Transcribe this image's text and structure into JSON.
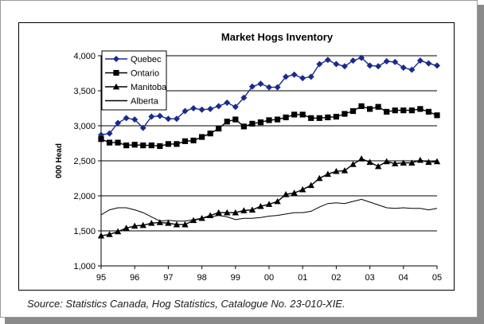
{
  "source_note": "Source: Statistics Canada, Hog Statistics, Catalogue No. 23-010-XIE.",
  "chart_data": {
    "type": "line",
    "title": "Market Hogs Inventory",
    "xlabel": "",
    "ylabel": "000 Head",
    "ylim": [
      1000,
      4000
    ],
    "yticks": [
      1000,
      1500,
      2000,
      2500,
      3000,
      3500,
      4000
    ],
    "ytick_labels": [
      "1,000",
      "1,500",
      "2,000",
      "2,500",
      "3,000",
      "3,500",
      "4,000"
    ],
    "xlim": [
      95,
      105
    ],
    "xticks": [
      95,
      96,
      97,
      98,
      99,
      100,
      101,
      102,
      103,
      104,
      105
    ],
    "xtick_labels": [
      "95",
      "96",
      "97",
      "98",
      "99",
      "00",
      "01",
      "02",
      "03",
      "04",
      "05"
    ],
    "grid": "horizontal",
    "legend_position": "top-left",
    "x": [
      95.0,
      95.25,
      95.5,
      95.75,
      96.0,
      96.25,
      96.5,
      96.75,
      97.0,
      97.25,
      97.5,
      97.75,
      98.0,
      98.25,
      98.5,
      98.75,
      99.0,
      99.25,
      99.5,
      99.75,
      100.0,
      100.25,
      100.5,
      100.75,
      101.0,
      101.25,
      101.5,
      101.75,
      102.0,
      102.25,
      102.5,
      102.75,
      103.0,
      103.25,
      103.5,
      103.75,
      104.0,
      104.25,
      104.5,
      104.75,
      105.0
    ],
    "series": [
      {
        "name": "Quebec",
        "marker": "diamond",
        "color": "#1a2a8c",
        "values": [
          2870,
          2890,
          3040,
          3110,
          3090,
          2970,
          3130,
          3140,
          3100,
          3100,
          3210,
          3250,
          3230,
          3240,
          3280,
          3330,
          3270,
          3400,
          3560,
          3600,
          3550,
          3550,
          3700,
          3730,
          3680,
          3700,
          3880,
          3940,
          3880,
          3850,
          3930,
          3970,
          3860,
          3850,
          3920,
          3910,
          3830,
          3800,
          3930,
          3890,
          3860
        ]
      },
      {
        "name": "Ontario",
        "marker": "square",
        "color": "#000000",
        "values": [
          2810,
          2760,
          2760,
          2720,
          2730,
          2720,
          2720,
          2710,
          2740,
          2740,
          2780,
          2790,
          2840,
          2890,
          2960,
          3060,
          3090,
          2990,
          3030,
          3050,
          3080,
          3090,
          3120,
          3160,
          3160,
          3110,
          3110,
          3120,
          3130,
          3170,
          3210,
          3280,
          3240,
          3270,
          3200,
          3220,
          3220,
          3220,
          3240,
          3200,
          3150
        ]
      },
      {
        "name": "Manitoba",
        "marker": "triangle",
        "color": "#000000",
        "values": [
          1430,
          1450,
          1490,
          1540,
          1570,
          1580,
          1610,
          1620,
          1610,
          1590,
          1590,
          1650,
          1680,
          1720,
          1760,
          1760,
          1760,
          1790,
          1800,
          1850,
          1880,
          1920,
          2020,
          2040,
          2090,
          2150,
          2250,
          2310,
          2350,
          2360,
          2450,
          2530,
          2480,
          2420,
          2490,
          2460,
          2470,
          2470,
          2510,
          2480,
          2490
        ]
      },
      {
        "name": "Alberta",
        "marker": "none",
        "color": "#000000",
        "values": [
          1730,
          1800,
          1830,
          1830,
          1800,
          1760,
          1700,
          1640,
          1650,
          1640,
          1640,
          1660,
          1680,
          1700,
          1720,
          1700,
          1660,
          1680,
          1680,
          1690,
          1710,
          1720,
          1740,
          1760,
          1760,
          1780,
          1840,
          1890,
          1900,
          1890,
          1920,
          1950,
          1910,
          1870,
          1830,
          1820,
          1830,
          1820,
          1820,
          1800,
          1820
        ]
      }
    ]
  }
}
